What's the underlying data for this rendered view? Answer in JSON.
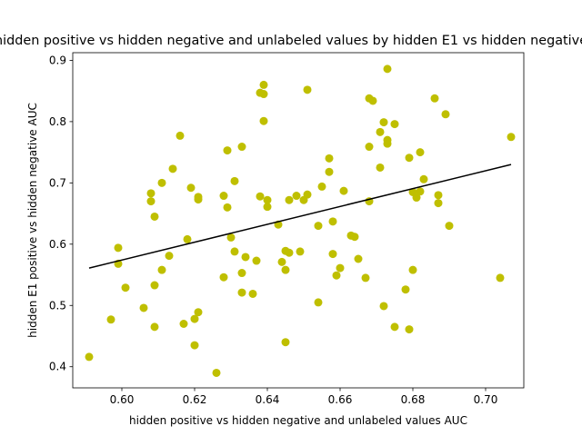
{
  "chart_data": {
    "type": "scatter",
    "title": "hidden positive vs hidden negative and unlabeled values by hidden E1 vs hidden negative",
    "xlabel": "hidden positive vs hidden negative and unlabeled values AUC",
    "ylabel": "hidden E1 positive vs hidden negative  AUC",
    "xlim": [
      0.5865,
      0.7105
    ],
    "ylim": [
      0.3655,
      0.9125
    ],
    "xticks": [
      "0.60",
      "0.62",
      "0.64",
      "0.66",
      "0.68",
      "0.70"
    ],
    "yticks": [
      "0.4",
      "0.5",
      "0.6",
      "0.7",
      "0.8",
      "0.9"
    ],
    "grid": false,
    "point_color": "#bfbf00",
    "line_color": "#000000",
    "trendline": {
      "x": [
        0.591,
        0.707
      ],
      "y": [
        0.561,
        0.73
      ]
    },
    "points": [
      {
        "x": 0.591,
        "y": 0.416
      },
      {
        "x": 0.597,
        "y": 0.477
      },
      {
        "x": 0.599,
        "y": 0.594
      },
      {
        "x": 0.599,
        "y": 0.568
      },
      {
        "x": 0.601,
        "y": 0.529
      },
      {
        "x": 0.606,
        "y": 0.496
      },
      {
        "x": 0.608,
        "y": 0.683
      },
      {
        "x": 0.608,
        "y": 0.67
      },
      {
        "x": 0.609,
        "y": 0.645
      },
      {
        "x": 0.609,
        "y": 0.533
      },
      {
        "x": 0.609,
        "y": 0.465
      },
      {
        "x": 0.611,
        "y": 0.558
      },
      {
        "x": 0.611,
        "y": 0.7
      },
      {
        "x": 0.613,
        "y": 0.581
      },
      {
        "x": 0.614,
        "y": 0.723
      },
      {
        "x": 0.616,
        "y": 0.777
      },
      {
        "x": 0.617,
        "y": 0.47
      },
      {
        "x": 0.618,
        "y": 0.608
      },
      {
        "x": 0.619,
        "y": 0.692
      },
      {
        "x": 0.62,
        "y": 0.435
      },
      {
        "x": 0.62,
        "y": 0.478
      },
      {
        "x": 0.621,
        "y": 0.673
      },
      {
        "x": 0.621,
        "y": 0.677
      },
      {
        "x": 0.621,
        "y": 0.489
      },
      {
        "x": 0.626,
        "y": 0.39
      },
      {
        "x": 0.628,
        "y": 0.679
      },
      {
        "x": 0.628,
        "y": 0.546
      },
      {
        "x": 0.629,
        "y": 0.66
      },
      {
        "x": 0.629,
        "y": 0.753
      },
      {
        "x": 0.63,
        "y": 0.611
      },
      {
        "x": 0.631,
        "y": 0.588
      },
      {
        "x": 0.631,
        "y": 0.703
      },
      {
        "x": 0.633,
        "y": 0.553
      },
      {
        "x": 0.633,
        "y": 0.521
      },
      {
        "x": 0.633,
        "y": 0.759
      },
      {
        "x": 0.634,
        "y": 0.579
      },
      {
        "x": 0.636,
        "y": 0.519
      },
      {
        "x": 0.637,
        "y": 0.573
      },
      {
        "x": 0.638,
        "y": 0.678
      },
      {
        "x": 0.638,
        "y": 0.847
      },
      {
        "x": 0.639,
        "y": 0.801
      },
      {
        "x": 0.639,
        "y": 0.845
      },
      {
        "x": 0.639,
        "y": 0.86
      },
      {
        "x": 0.64,
        "y": 0.661
      },
      {
        "x": 0.64,
        "y": 0.672
      },
      {
        "x": 0.643,
        "y": 0.632
      },
      {
        "x": 0.644,
        "y": 0.571
      },
      {
        "x": 0.645,
        "y": 0.589
      },
      {
        "x": 0.645,
        "y": 0.558
      },
      {
        "x": 0.645,
        "y": 0.44
      },
      {
        "x": 0.646,
        "y": 0.586
      },
      {
        "x": 0.646,
        "y": 0.672
      },
      {
        "x": 0.648,
        "y": 0.679
      },
      {
        "x": 0.649,
        "y": 0.588
      },
      {
        "x": 0.65,
        "y": 0.672
      },
      {
        "x": 0.651,
        "y": 0.681
      },
      {
        "x": 0.651,
        "y": 0.852
      },
      {
        "x": 0.654,
        "y": 0.505
      },
      {
        "x": 0.654,
        "y": 0.63
      },
      {
        "x": 0.655,
        "y": 0.694
      },
      {
        "x": 0.657,
        "y": 0.718
      },
      {
        "x": 0.657,
        "y": 0.74
      },
      {
        "x": 0.658,
        "y": 0.637
      },
      {
        "x": 0.658,
        "y": 0.584
      },
      {
        "x": 0.659,
        "y": 0.549
      },
      {
        "x": 0.66,
        "y": 0.561
      },
      {
        "x": 0.661,
        "y": 0.687
      },
      {
        "x": 0.663,
        "y": 0.614
      },
      {
        "x": 0.664,
        "y": 0.612
      },
      {
        "x": 0.665,
        "y": 0.576
      },
      {
        "x": 0.667,
        "y": 0.545
      },
      {
        "x": 0.668,
        "y": 0.67
      },
      {
        "x": 0.668,
        "y": 0.759
      },
      {
        "x": 0.668,
        "y": 0.838
      },
      {
        "x": 0.669,
        "y": 0.834
      },
      {
        "x": 0.671,
        "y": 0.725
      },
      {
        "x": 0.671,
        "y": 0.783
      },
      {
        "x": 0.672,
        "y": 0.499
      },
      {
        "x": 0.672,
        "y": 0.799
      },
      {
        "x": 0.673,
        "y": 0.77
      },
      {
        "x": 0.673,
        "y": 0.764
      },
      {
        "x": 0.673,
        "y": 0.886
      },
      {
        "x": 0.675,
        "y": 0.465
      },
      {
        "x": 0.675,
        "y": 0.796
      },
      {
        "x": 0.678,
        "y": 0.526
      },
      {
        "x": 0.679,
        "y": 0.461
      },
      {
        "x": 0.679,
        "y": 0.741
      },
      {
        "x": 0.68,
        "y": 0.558
      },
      {
        "x": 0.68,
        "y": 0.685
      },
      {
        "x": 0.681,
        "y": 0.676
      },
      {
        "x": 0.682,
        "y": 0.75
      },
      {
        "x": 0.682,
        "y": 0.686
      },
      {
        "x": 0.683,
        "y": 0.706
      },
      {
        "x": 0.686,
        "y": 0.838
      },
      {
        "x": 0.687,
        "y": 0.68
      },
      {
        "x": 0.687,
        "y": 0.667
      },
      {
        "x": 0.689,
        "y": 0.812
      },
      {
        "x": 0.69,
        "y": 0.63
      },
      {
        "x": 0.704,
        "y": 0.545
      },
      {
        "x": 0.707,
        "y": 0.775
      }
    ]
  }
}
